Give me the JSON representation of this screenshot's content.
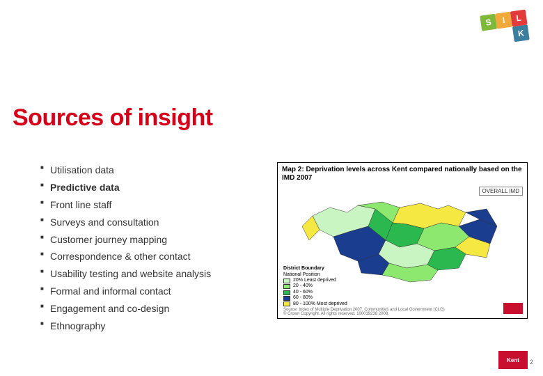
{
  "logo": {
    "s": "S",
    "i": "I",
    "l": "L",
    "k": "K"
  },
  "title": "Sources of insight",
  "bullets": [
    {
      "text": "Utilisation data",
      "bold": false
    },
    {
      "text": "Predictive data",
      "bold": true
    },
    {
      "text": "Front line staff",
      "bold": false
    },
    {
      "text": "Surveys and consultation",
      "bold": false
    },
    {
      "text": "Customer journey mapping",
      "bold": false
    },
    {
      "text": "Correspondence & other contact",
      "bold": false
    },
    {
      "text": "Usability testing and website analysis",
      "bold": false
    },
    {
      "text": "Formal and informal contact",
      "bold": false
    },
    {
      "text": "Engagement and co-design",
      "bold": false
    },
    {
      "text": "Ethnography",
      "bold": false
    }
  ],
  "map": {
    "title": "Map 2: Deprivation levels across Kent compared nationally based on the IMD 2007",
    "overall_label": "OVERALL IMD",
    "legend_title": "District Boundary",
    "legend_subtitle": "National Position",
    "legend_items": [
      {
        "color": "#c9f5c2",
        "label": "20% Least deprived"
      },
      {
        "color": "#8de86f",
        "label": "20 - 40%"
      },
      {
        "color": "#2bb84e",
        "label": "40 - 60%"
      },
      {
        "color": "#1a3d8f",
        "label": "60 - 80%"
      },
      {
        "color": "#f5e843",
        "label": "80 - 100% Most deprived"
      }
    ],
    "source_line1": "Source: Index of Multiple Deprivation 2007, Communities and Local Government (CLG)",
    "source_line2": "© Crown Copyright. All rights reserved. 100019238 2008.",
    "corner_logo_text": "Kent"
  },
  "footer": {
    "logo_text": "Kent",
    "page_num": "2"
  },
  "map_colors": {
    "light": "#c9f5c2",
    "mid": "#8de86f",
    "green": "#2bb84e",
    "navy": "#1a3d8f",
    "yellow": "#f5e843"
  }
}
